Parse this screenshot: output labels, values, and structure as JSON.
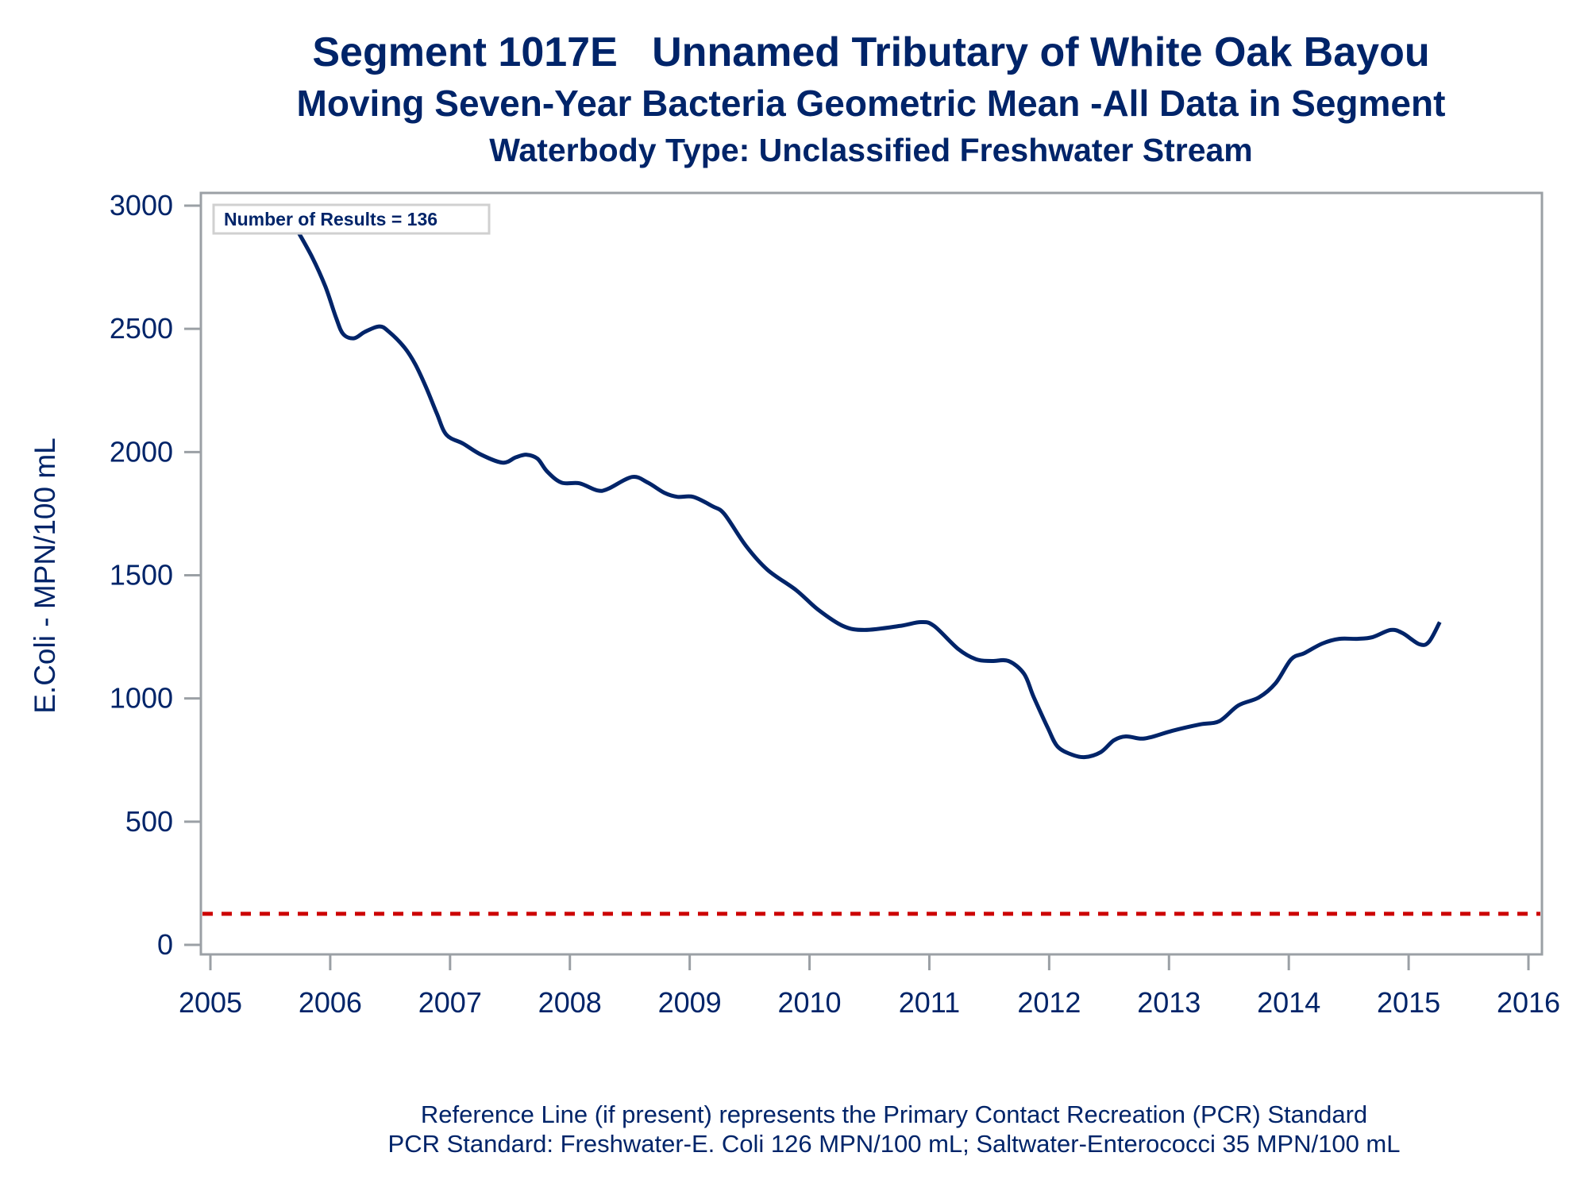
{
  "title": {
    "line1": "Segment 1017E   Unnamed Tributary of White Oak Bayou",
    "line2": "Moving Seven-Year Bacteria Geometric Mean -All Data in Segment",
    "line3": "Waterbody Type: Unclassified Freshwater Stream"
  },
  "footnote": {
    "line1": "Reference Line (if present) represents the Primary Contact Recreation (PCR) Standard",
    "line2": "PCR Standard: Freshwater-E. Coli 126 MPN/100 mL; Saltwater-Enterococci 35 MPN/100 mL"
  },
  "colors": {
    "series": "#002469",
    "reference_line": "#cc0000",
    "axis": "#9ba0a5",
    "text": "#002469"
  },
  "chart_data": {
    "type": "line",
    "title": "Segment 1017E   Unnamed Tributary of White Oak Bayou",
    "subtitle": "Moving Seven-Year Bacteria Geometric Mean -All Data in Segment; Waterbody Type: Unclassified Freshwater Stream",
    "xlabel": "",
    "ylabel": "E.Coli - MPN/100 mL",
    "xlim": [
      2005,
      2016
    ],
    "ylim": [
      0,
      3000
    ],
    "x_ticks": [
      "2005",
      "2006",
      "2007",
      "2008",
      "2009",
      "2010",
      "2011",
      "2012",
      "2013",
      "2014",
      "2015",
      "2016"
    ],
    "y_ticks": [
      "0",
      "500",
      "1000",
      "1500",
      "2000",
      "2500",
      "3000"
    ],
    "grid": false,
    "annotation": "Number of Results = 136",
    "reference_line": {
      "value": 126,
      "label": "PCR Standard (Freshwater E. Coli)",
      "style": "dashed"
    },
    "series": [
      {
        "name": "Moving Seven-Year Geometric Mean",
        "x": [
          2005.71,
          2005.85,
          2005.96,
          2006.05,
          2006.11,
          2006.2,
          2006.29,
          2006.41,
          2006.49,
          2006.62,
          2006.71,
          2006.8,
          2006.89,
          2006.97,
          2007.11,
          2007.26,
          2007.44,
          2007.55,
          2007.64,
          2007.73,
          2007.81,
          2007.93,
          2008.08,
          2008.23,
          2008.32,
          2008.52,
          2008.65,
          2008.79,
          2008.9,
          2009.03,
          2009.19,
          2009.29,
          2009.47,
          2009.65,
          2009.89,
          2010.07,
          2010.28,
          2010.46,
          2010.75,
          2010.93,
          2011.04,
          2011.24,
          2011.39,
          2011.52,
          2011.66,
          2011.79,
          2011.87,
          2011.99,
          2012.07,
          2012.19,
          2012.3,
          2012.43,
          2012.54,
          2012.64,
          2012.76,
          2012.85,
          2013.03,
          2013.26,
          2013.42,
          2013.58,
          2013.75,
          2013.89,
          2014.02,
          2014.13,
          2014.28,
          2014.42,
          2014.57,
          2014.7,
          2014.85,
          2014.95,
          2015.09,
          2015.17,
          2015.26
        ],
        "values": [
          2913,
          2790,
          2671,
          2543,
          2478,
          2462,
          2488,
          2510,
          2488,
          2424,
          2356,
          2263,
          2156,
          2070,
          2034,
          1989,
          1957,
          1979,
          1989,
          1973,
          1921,
          1876,
          1873,
          1844,
          1851,
          1899,
          1876,
          1834,
          1818,
          1818,
          1780,
          1748,
          1619,
          1522,
          1439,
          1361,
          1294,
          1278,
          1294,
          1310,
          1294,
          1201,
          1159,
          1152,
          1152,
          1100,
          1007,
          879,
          805,
          772,
          762,
          782,
          830,
          846,
          837,
          843,
          869,
          895,
          908,
          972,
          1004,
          1062,
          1159,
          1184,
          1223,
          1242,
          1242,
          1249,
          1278,
          1265,
          1220,
          1230,
          1310
        ]
      }
    ]
  }
}
